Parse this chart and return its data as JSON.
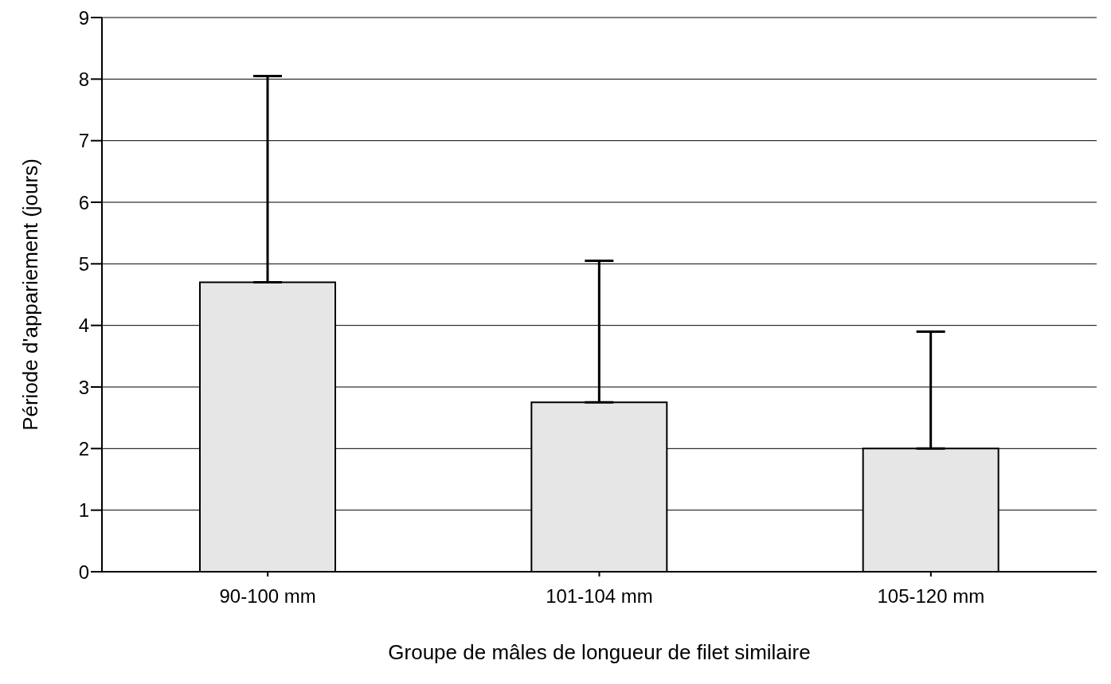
{
  "chart_data": {
    "type": "bar",
    "xlabel": "Groupe de mâles de longueur de filet similaire",
    "ylabel": "Période d'appariement (jours)",
    "categories": [
      "90-100 mm",
      "101-104 mm",
      "105-120 mm"
    ],
    "values": [
      4.7,
      2.75,
      2.0
    ],
    "errors": [
      [
        4.7,
        8.05
      ],
      [
        2.75,
        5.05
      ],
      [
        2.0,
        3.9
      ]
    ],
    "color": "#e6e6e6",
    "ylim": [
      0,
      9
    ],
    "yticks": [
      0,
      1,
      2,
      3,
      4,
      5,
      6,
      7,
      8,
      9
    ],
    "grid": "y"
  }
}
